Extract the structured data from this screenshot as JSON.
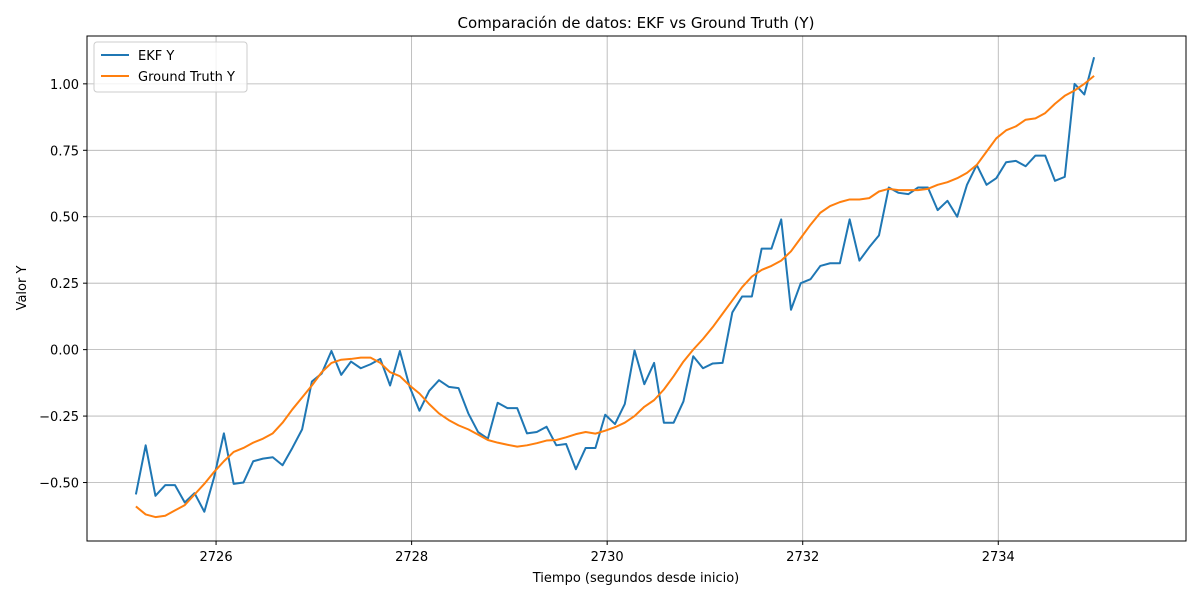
{
  "chart_data": {
    "type": "line",
    "title": "Comparación de datos: EKF vs Ground Truth (Y)",
    "xlabel": "Tiempo (segundos desde inicio)",
    "ylabel": "Valor Y",
    "xlim": [
      2724.68,
      2735.92
    ],
    "ylim": [
      -0.72,
      1.18
    ],
    "x_ticks": [
      2726,
      2728,
      2730,
      2732,
      2734
    ],
    "y_ticks": [
      -0.5,
      -0.25,
      0.0,
      0.25,
      0.5,
      0.75,
      1.0
    ],
    "x_tick_labels": [
      "2726",
      "2728",
      "2730",
      "2732",
      "2734"
    ],
    "y_tick_labels": [
      "−0.50",
      "−0.25",
      "0.00",
      "0.25",
      "0.50",
      "0.75",
      "1.00"
    ],
    "grid": true,
    "legend_position": "top-left",
    "series": [
      {
        "name": "EKF Y",
        "color": "#1f77b4",
        "x": [
          2725.18,
          2725.28,
          2725.38,
          2725.48,
          2725.58,
          2725.68,
          2725.78,
          2725.88,
          2725.98,
          2726.08,
          2726.18,
          2726.28,
          2726.38,
          2726.48,
          2726.58,
          2726.68,
          2726.78,
          2726.88,
          2726.98,
          2727.08,
          2727.18,
          2727.28,
          2727.38,
          2727.48,
          2727.58,
          2727.68,
          2727.78,
          2727.88,
          2727.98,
          2728.08,
          2728.18,
          2728.28,
          2728.38,
          2728.48,
          2728.58,
          2728.68,
          2728.78,
          2728.88,
          2728.98,
          2729.08,
          2729.18,
          2729.28,
          2729.38,
          2729.48,
          2729.58,
          2729.68,
          2729.78,
          2729.88,
          2729.98,
          2730.08,
          2730.18,
          2730.28,
          2730.38,
          2730.48,
          2730.58,
          2730.68,
          2730.78,
          2730.88,
          2730.98,
          2731.08,
          2731.18,
          2731.28,
          2731.38,
          2731.48,
          2731.58,
          2731.68,
          2731.78,
          2731.88,
          2731.98,
          2732.08,
          2732.18,
          2732.28,
          2732.38,
          2732.48,
          2732.58,
          2732.68,
          2732.78,
          2732.88,
          2732.98,
          2733.08,
          2733.18,
          2733.28,
          2733.38,
          2733.48,
          2733.58,
          2733.68,
          2733.78,
          2733.88,
          2733.98,
          2734.08,
          2734.18,
          2734.28,
          2734.38,
          2734.48,
          2734.58,
          2734.68,
          2734.78,
          2734.88,
          2734.98
        ],
        "values": [
          -0.545,
          -0.36,
          -0.55,
          -0.51,
          -0.51,
          -0.575,
          -0.54,
          -0.61,
          -0.48,
          -0.315,
          -0.505,
          -0.5,
          -0.42,
          -0.41,
          -0.405,
          -0.435,
          -0.37,
          -0.3,
          -0.12,
          -0.09,
          -0.005,
          -0.095,
          -0.045,
          -0.07,
          -0.055,
          -0.035,
          -0.135,
          -0.005,
          -0.14,
          -0.23,
          -0.155,
          -0.115,
          -0.14,
          -0.145,
          -0.24,
          -0.31,
          -0.335,
          -0.2,
          -0.22,
          -0.22,
          -0.315,
          -0.31,
          -0.29,
          -0.36,
          -0.355,
          -0.45,
          -0.37,
          -0.37,
          -0.245,
          -0.28,
          -0.205,
          -0.003,
          -0.13,
          -0.05,
          -0.275,
          -0.275,
          -0.195,
          -0.025,
          -0.07,
          -0.052,
          -0.05,
          0.14,
          0.2,
          0.2,
          0.38,
          0.38,
          0.49,
          0.15,
          0.25,
          0.265,
          0.315,
          0.325,
          0.325,
          0.49,
          0.335,
          0.385,
          0.43,
          0.61,
          0.59,
          0.585,
          0.61,
          0.61,
          0.525,
          0.56,
          0.5,
          0.62,
          0.695,
          0.62,
          0.645,
          0.705,
          0.71,
          0.69,
          0.73,
          0.73,
          0.635,
          0.65,
          1.0,
          0.96,
          1.1
        ]
      },
      {
        "name": "Ground Truth Y",
        "color": "#ff7f0e",
        "x": [
          2725.18,
          2725.28,
          2725.38,
          2725.48,
          2725.58,
          2725.68,
          2725.78,
          2725.88,
          2725.98,
          2726.08,
          2726.18,
          2726.28,
          2726.38,
          2726.48,
          2726.58,
          2726.68,
          2726.78,
          2726.88,
          2726.98,
          2727.08,
          2727.18,
          2727.28,
          2727.38,
          2727.48,
          2727.58,
          2727.68,
          2727.78,
          2727.88,
          2727.98,
          2728.08,
          2728.18,
          2728.28,
          2728.38,
          2728.48,
          2728.58,
          2728.68,
          2728.78,
          2728.88,
          2728.98,
          2729.08,
          2729.18,
          2729.28,
          2729.38,
          2729.48,
          2729.58,
          2729.68,
          2729.78,
          2729.88,
          2729.98,
          2730.08,
          2730.18,
          2730.28,
          2730.38,
          2730.48,
          2730.58,
          2730.68,
          2730.78,
          2730.88,
          2730.98,
          2731.08,
          2731.18,
          2731.28,
          2731.38,
          2731.48,
          2731.58,
          2731.68,
          2731.78,
          2731.88,
          2731.98,
          2732.08,
          2732.18,
          2732.28,
          2732.38,
          2732.48,
          2732.58,
          2732.68,
          2732.78,
          2732.88,
          2732.98,
          2733.08,
          2733.18,
          2733.28,
          2733.38,
          2733.48,
          2733.58,
          2733.68,
          2733.78,
          2733.88,
          2733.98,
          2734.08,
          2734.18,
          2734.28,
          2734.38,
          2734.48,
          2734.58,
          2734.68,
          2734.78,
          2734.88,
          2734.98
        ],
        "values": [
          -0.59,
          -0.62,
          -0.63,
          -0.625,
          -0.605,
          -0.585,
          -0.545,
          -0.505,
          -0.46,
          -0.42,
          -0.385,
          -0.37,
          -0.35,
          -0.335,
          -0.315,
          -0.275,
          -0.225,
          -0.18,
          -0.135,
          -0.085,
          -0.05,
          -0.038,
          -0.035,
          -0.03,
          -0.03,
          -0.05,
          -0.085,
          -0.1,
          -0.135,
          -0.165,
          -0.205,
          -0.24,
          -0.265,
          -0.285,
          -0.3,
          -0.32,
          -0.34,
          -0.35,
          -0.358,
          -0.365,
          -0.36,
          -0.352,
          -0.342,
          -0.34,
          -0.33,
          -0.318,
          -0.31,
          -0.316,
          -0.305,
          -0.292,
          -0.275,
          -0.25,
          -0.215,
          -0.19,
          -0.15,
          -0.1,
          -0.045,
          0.0,
          0.04,
          0.085,
          0.135,
          0.185,
          0.235,
          0.275,
          0.3,
          0.315,
          0.335,
          0.37,
          0.42,
          0.47,
          0.515,
          0.54,
          0.555,
          0.565,
          0.565,
          0.57,
          0.595,
          0.605,
          0.6,
          0.6,
          0.6,
          0.605,
          0.62,
          0.63,
          0.645,
          0.665,
          0.695,
          0.745,
          0.795,
          0.825,
          0.84,
          0.865,
          0.87,
          0.89,
          0.925,
          0.955,
          0.975,
          1.0,
          1.03
        ]
      }
    ]
  }
}
